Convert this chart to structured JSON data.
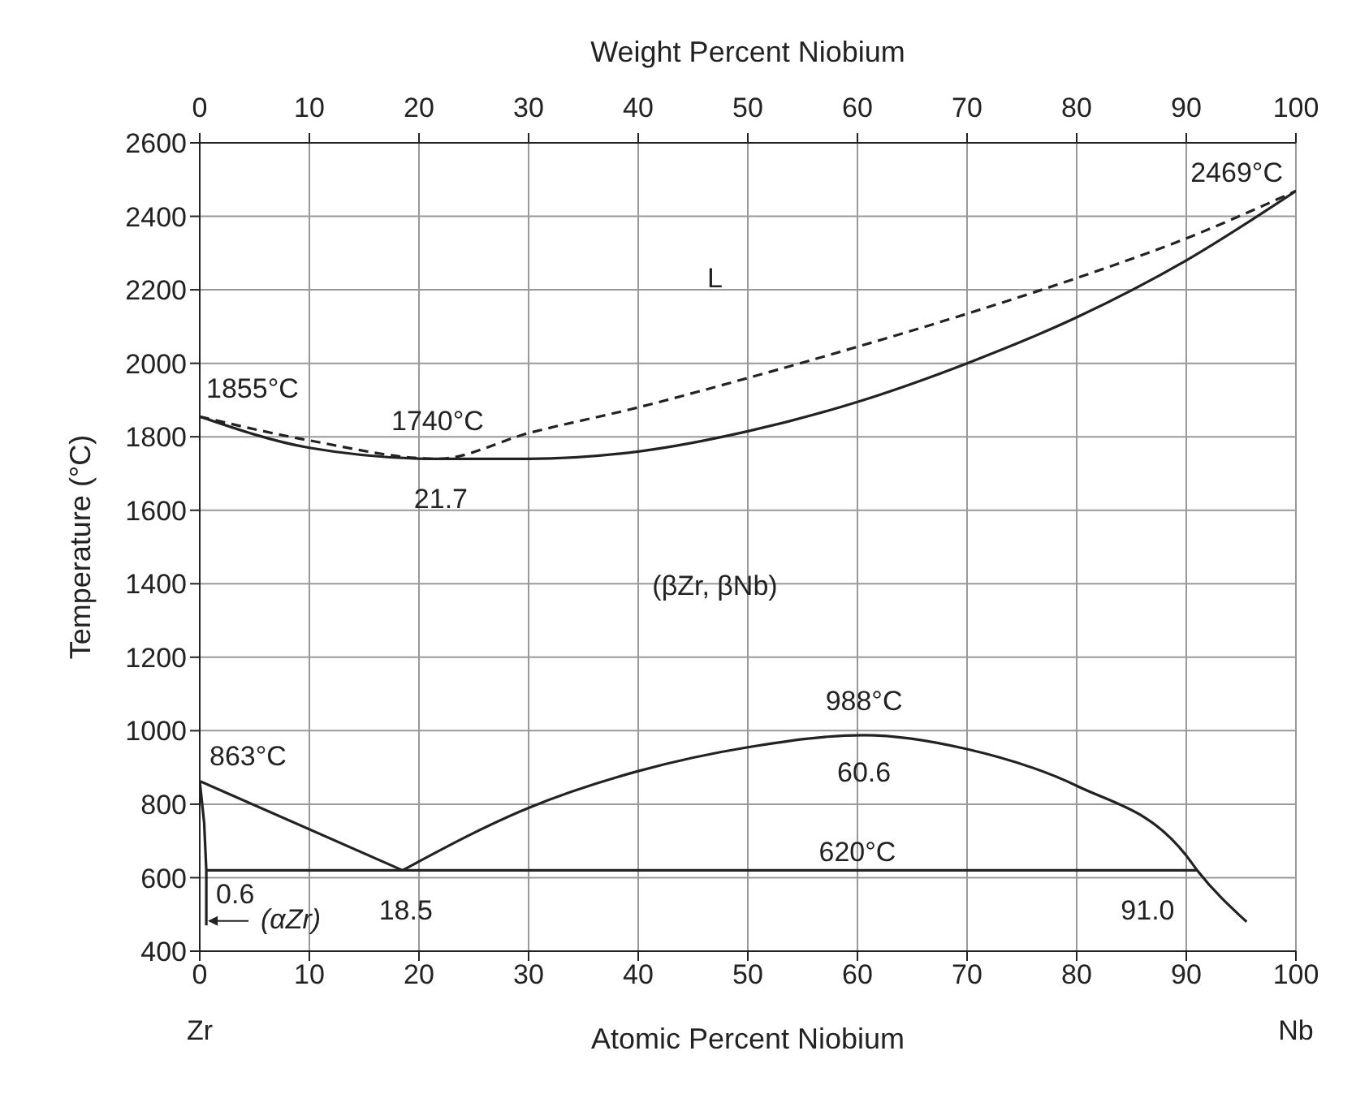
{
  "chart_data": {
    "type": "line",
    "xlabel": "Atomic Percent Niobium",
    "x2label": "Weight Percent Niobium",
    "ylabel": "Temperature (°C)",
    "xlim": [
      0,
      100
    ],
    "xticks": [
      0,
      10,
      20,
      30,
      40,
      50,
      60,
      70,
      80,
      90,
      100
    ],
    "x2lim": [
      0,
      100
    ],
    "x2ticks": [
      0,
      10,
      20,
      30,
      40,
      50,
      60,
      70,
      80,
      90,
      100
    ],
    "ylim": [
      400,
      2600
    ],
    "yticks": [
      400,
      600,
      800,
      1000,
      1200,
      1400,
      1600,
      1800,
      2000,
      2200,
      2400,
      2600
    ],
    "grid": true,
    "marker": "none",
    "series": [
      {
        "color": "#222222",
        "line_style": "dashed",
        "x": [
          0,
          10,
          21.7,
          30,
          40,
          50,
          60,
          70,
          80,
          90,
          100
        ],
        "values": [
          1855,
          1790,
          1740,
          1810,
          1880,
          1960,
          2045,
          2135,
          2232,
          2340,
          2469
        ]
      },
      {
        "color": "#222222",
        "line_style": "solid",
        "x": [
          0,
          10,
          21.7,
          30,
          40,
          50,
          60,
          70,
          80,
          90,
          100
        ],
        "values": [
          1855,
          1770,
          1740,
          1740,
          1760,
          1815,
          1895,
          2000,
          2125,
          2280,
          2469
        ]
      },
      {
        "color": "#222222",
        "line_style": "solid",
        "x": [
          18.5,
          30,
          40,
          50,
          60.6,
          70,
          80,
          90,
          91,
          95.5
        ],
        "values": [
          620,
          790,
          890,
          955,
          988,
          950,
          850,
          660,
          620,
          480
        ]
      },
      {
        "color": "#222222",
        "line_style": "solid",
        "x": [
          0,
          18.5
        ],
        "values": [
          863,
          620
        ]
      },
      {
        "color": "#222222",
        "line_style": "solid",
        "x": [
          0,
          0.4,
          0.6,
          0.6
        ],
        "values": [
          863,
          750,
          620,
          470
        ]
      },
      {
        "color": "#222222",
        "line_style": "solid",
        "x": [
          0.6,
          91
        ],
        "values": [
          620,
          620
        ]
      }
    ],
    "annotations": [
      {
        "text": "2469°C",
        "x": 100,
        "y": 2469
      },
      "L",
      {
        "text": "1855°C",
        "x": 0,
        "y": 1855
      },
      {
        "text": "1740°C",
        "x": 21.7,
        "y": 1740
      },
      {
        "text": "21.7",
        "x": 21.7,
        "y": 1740
      },
      "(βZr, βNb)",
      {
        "text": "988°C",
        "x": 60.6,
        "y": 988
      },
      {
        "text": "60.6",
        "x": 60.6,
        "y": 988
      },
      {
        "text": "863°C",
        "x": 0,
        "y": 863
      },
      {
        "text": "620°C",
        "x": 60,
        "y": 620
      },
      {
        "text": "18.5",
        "x": 18.5,
        "y": 620
      },
      {
        "text": "0.6",
        "x": 0.6,
        "y": 620
      },
      {
        "text": "(αZr)",
        "x": 0.6,
        "y": 500
      },
      {
        "text": "91.0",
        "x": 91,
        "y": 620
      },
      "Zr",
      "Nb"
    ]
  }
}
